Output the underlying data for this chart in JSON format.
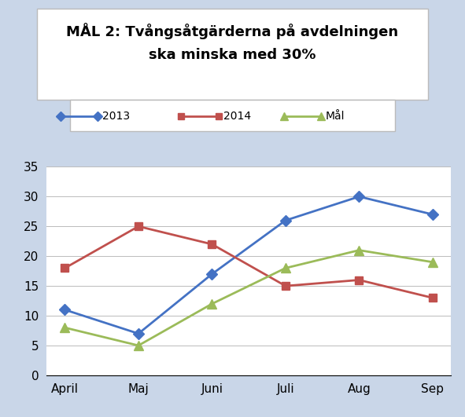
{
  "title_line1": "MÅL 2: Tvångsåtgärderna på avdelningen",
  "title_line2": "ska minska med 30%",
  "categories": [
    "April",
    "Maj",
    "Juni",
    "Juli",
    "Aug",
    "Sep"
  ],
  "series_2013": [
    11,
    7,
    17,
    26,
    30,
    27
  ],
  "series_2014": [
    18,
    25,
    22,
    15,
    16,
    13
  ],
  "series_mal": [
    8,
    5,
    12,
    18,
    21,
    19
  ],
  "color_2013": "#4472C4",
  "color_2014": "#C0504D",
  "color_mal": "#9BBB59",
  "background_color": "#C9D6E8",
  "plot_bg_color": "#FFFFFF",
  "ylim": [
    0,
    35
  ],
  "yticks": [
    0,
    5,
    10,
    15,
    20,
    25,
    30,
    35
  ],
  "legend_labels": [
    "2013",
    "2014",
    "Mål"
  ],
  "title_fontsize": 13,
  "axis_fontsize": 11
}
